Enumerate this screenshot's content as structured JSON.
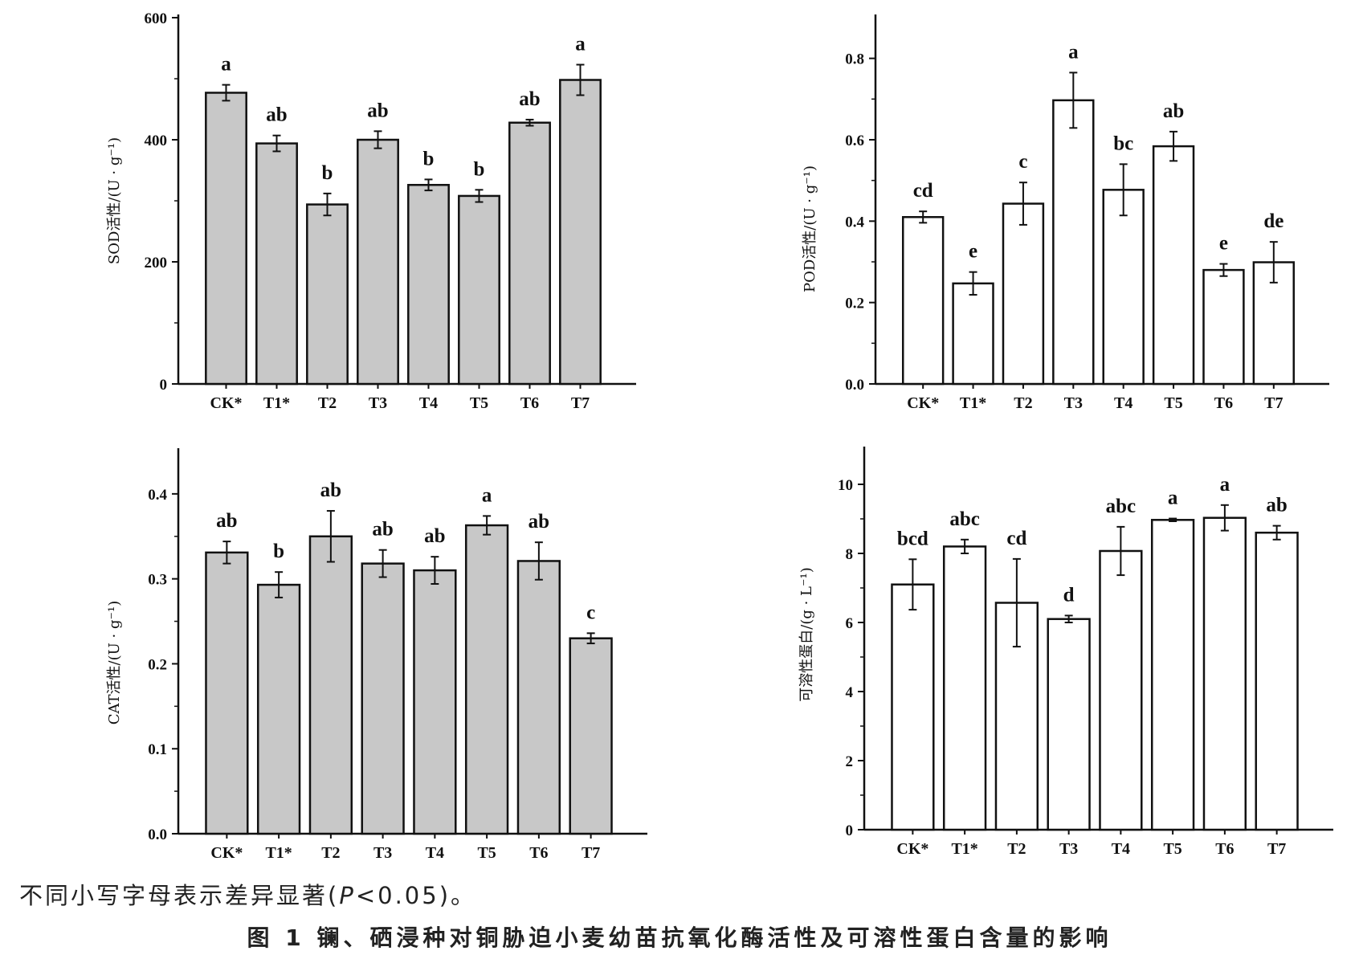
{
  "note": {
    "text": "不同小写字母表示差异显著(",
    "p": "P",
    "rest": "<0.05)。"
  },
  "caption": "图 1  镧、硒浸种对铜胁迫小麦幼苗抗氧化酶活性及可溶性蛋白含量的影响",
  "chart_data": [
    {
      "id": "sod",
      "type": "bar",
      "ylabel": "SOD活性/(U · g⁻¹)",
      "categories": [
        "CK*",
        "T1*",
        "T2",
        "T3",
        "T4",
        "T5",
        "T6",
        "T7"
      ],
      "values": [
        477,
        394,
        294,
        400,
        326,
        308,
        428,
        498
      ],
      "errors": [
        13,
        13,
        18,
        14,
        9,
        10,
        5,
        25
      ],
      "letters": [
        "a",
        "ab",
        "b",
        "ab",
        "b",
        "b",
        "ab",
        "a"
      ],
      "ylim": [
        0,
        600
      ],
      "yticks": [
        "0",
        "200",
        "400",
        "600"
      ],
      "yticks_values": [
        0,
        200,
        400,
        600
      ],
      "bar_color": "#c8c8c8"
    },
    {
      "id": "pod",
      "type": "bar",
      "ylabel": "POD活性/(U · g⁻¹)",
      "categories": [
        "CK*",
        "T1*",
        "T2",
        "T3",
        "T4",
        "T5",
        "T6",
        "T7"
      ],
      "values": [
        0.41,
        0.247,
        0.443,
        0.697,
        0.477,
        0.584,
        0.28,
        0.299
      ],
      "errors": [
        0.014,
        0.028,
        0.052,
        0.068,
        0.063,
        0.036,
        0.015,
        0.05
      ],
      "letters": [
        "cd",
        "e",
        "c",
        "a",
        "bc",
        "ab",
        "e",
        "de"
      ],
      "ylim": [
        0,
        0.9
      ],
      "yticks": [
        "0.0",
        "0.2",
        "0.4",
        "0.6",
        "0.8"
      ],
      "yticks_values": [
        0,
        0.2,
        0.4,
        0.6,
        0.8
      ],
      "bar_color": "#ffffff"
    },
    {
      "id": "cat",
      "type": "bar",
      "ylabel": "CAT活性/(U · g⁻¹)",
      "categories": [
        "CK*",
        "T1*",
        "T2",
        "T3",
        "T4",
        "T5",
        "T6",
        "T7"
      ],
      "values": [
        0.331,
        0.293,
        0.35,
        0.318,
        0.31,
        0.363,
        0.321,
        0.23
      ],
      "errors": [
        0.013,
        0.015,
        0.03,
        0.016,
        0.016,
        0.011,
        0.022,
        0.006
      ],
      "letters": [
        "ab",
        "b",
        "ab",
        "ab",
        "ab",
        "a",
        "ab",
        "c"
      ],
      "ylim": [
        0,
        0.45
      ],
      "yticks": [
        "0.0",
        "0.1",
        "0.2",
        "0.3",
        "0.4"
      ],
      "yticks_values": [
        0,
        0.1,
        0.2,
        0.3,
        0.4
      ],
      "bar_color": "#c8c8c8"
    },
    {
      "id": "protein",
      "type": "bar",
      "ylabel": "可溶性蛋白/(g · L⁻¹)",
      "categories": [
        "CK*",
        "T1*",
        "T2",
        "T3",
        "T4",
        "T5",
        "T6",
        "T7"
      ],
      "values": [
        7.1,
        8.2,
        6.57,
        6.1,
        8.07,
        8.97,
        9.03,
        8.6
      ],
      "errors": [
        0.73,
        0.2,
        1.27,
        0.1,
        0.7,
        0.04,
        0.37,
        0.2
      ],
      "letters": [
        "bcd",
        "abc",
        "cd",
        "d",
        "abc",
        "a",
        "a",
        "ab"
      ],
      "ylim": [
        0,
        11
      ],
      "yticks": [
        "0",
        "2",
        "4",
        "6",
        "8",
        "10"
      ],
      "yticks_values": [
        0,
        2,
        4,
        6,
        8,
        10
      ],
      "bar_color": "#ffffff"
    }
  ]
}
